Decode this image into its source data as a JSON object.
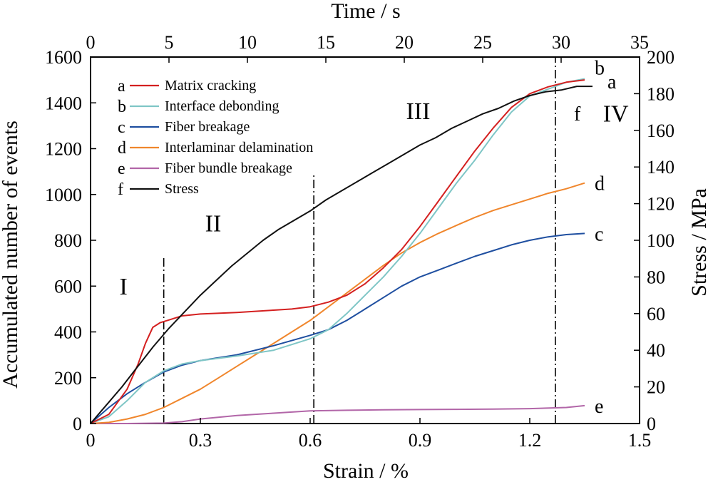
{
  "chart_data": {
    "type": "line",
    "xlabel": "Strain / %",
    "ylabel": "Accumulated number of events",
    "x2label": "Time / s",
    "y2label": "Stress / MPa",
    "xlim": [
      0,
      1.5
    ],
    "ylim": [
      0,
      1600
    ],
    "x2lim": [
      0,
      35
    ],
    "y2lim": [
      0,
      200
    ],
    "xticks": [
      0,
      0.3,
      0.6,
      0.9,
      1.2,
      1.5
    ],
    "xtick_labels": [
      "0",
      "0.3",
      "0.6",
      "0.9",
      "1.2",
      "1.5"
    ],
    "yticks": [
      0,
      200,
      400,
      600,
      800,
      1000,
      1200,
      1400,
      1600
    ],
    "ytick_labels": [
      "0",
      "200",
      "400",
      "600",
      "800",
      "1000",
      "1200",
      "1400",
      "1600"
    ],
    "x2ticks": [
      0,
      5,
      10,
      15,
      20,
      25,
      30,
      35
    ],
    "x2tick_labels": [
      "0",
      "5",
      "10",
      "15",
      "20",
      "25",
      "30",
      "35"
    ],
    "y2ticks": [
      0,
      20,
      40,
      60,
      80,
      100,
      120,
      140,
      160,
      180,
      200
    ],
    "y2tick_labels": [
      "0",
      "20",
      "40",
      "60",
      "80",
      "100",
      "120",
      "140",
      "160",
      "180",
      "200"
    ],
    "grid": false,
    "legend_position": "top-left",
    "series": [
      {
        "key": "a",
        "name": "Matrix cracking",
        "color": "#d42020",
        "axis": "left",
        "x": [
          0,
          0.05,
          0.1,
          0.13,
          0.15,
          0.17,
          0.19,
          0.21,
          0.25,
          0.3,
          0.4,
          0.5,
          0.55,
          0.6,
          0.65,
          0.7,
          0.75,
          0.8,
          0.85,
          0.9,
          0.95,
          1.0,
          1.05,
          1.1,
          1.15,
          1.2,
          1.25,
          1.3,
          1.35
        ],
        "y": [
          0,
          40,
          150,
          260,
          350,
          420,
          440,
          450,
          470,
          478,
          485,
          495,
          500,
          510,
          530,
          560,
          610,
          680,
          760,
          860,
          970,
          1080,
          1190,
          1290,
          1380,
          1440,
          1470,
          1490,
          1500
        ]
      },
      {
        "key": "b",
        "name": "Interface debonding",
        "color": "#7fc6c6",
        "axis": "left",
        "x": [
          0,
          0.05,
          0.1,
          0.15,
          0.2,
          0.25,
          0.3,
          0.4,
          0.5,
          0.55,
          0.6,
          0.65,
          0.7,
          0.75,
          0.8,
          0.85,
          0.9,
          0.95,
          1.0,
          1.05,
          1.1,
          1.15,
          1.2,
          1.25,
          1.3,
          1.35
        ],
        "y": [
          0,
          30,
          100,
          180,
          230,
          260,
          275,
          295,
          320,
          345,
          370,
          410,
          480,
          560,
          640,
          730,
          830,
          940,
          1050,
          1150,
          1260,
          1360,
          1430,
          1460,
          1490,
          1505
        ]
      },
      {
        "key": "c",
        "name": "Fiber breakage",
        "color": "#1f4fa0",
        "axis": "left",
        "x": [
          0,
          0.05,
          0.1,
          0.15,
          0.2,
          0.25,
          0.3,
          0.4,
          0.5,
          0.6,
          0.65,
          0.7,
          0.75,
          0.8,
          0.85,
          0.9,
          0.95,
          1.0,
          1.05,
          1.1,
          1.15,
          1.2,
          1.25,
          1.3,
          1.35
        ],
        "y": [
          0,
          70,
          130,
          180,
          225,
          255,
          275,
          300,
          340,
          385,
          410,
          450,
          500,
          550,
          600,
          640,
          670,
          700,
          730,
          755,
          780,
          800,
          815,
          825,
          830
        ]
      },
      {
        "key": "d",
        "name": "Interlaminar delamination",
        "color": "#f0862c",
        "axis": "left",
        "x": [
          0,
          0.05,
          0.1,
          0.15,
          0.2,
          0.25,
          0.3,
          0.35,
          0.4,
          0.45,
          0.5,
          0.55,
          0.6,
          0.65,
          0.7,
          0.75,
          0.8,
          0.85,
          0.9,
          0.95,
          1.0,
          1.05,
          1.1,
          1.15,
          1.2,
          1.25,
          1.3,
          1.35
        ],
        "y": [
          0,
          5,
          20,
          40,
          70,
          110,
          150,
          200,
          250,
          300,
          350,
          400,
          450,
          510,
          570,
          630,
          690,
          745,
          790,
          830,
          865,
          900,
          930,
          955,
          980,
          1005,
          1025,
          1050
        ]
      },
      {
        "key": "e",
        "name": "Fiber bundle breakage",
        "color": "#b266a8",
        "axis": "left",
        "x": [
          0,
          0.1,
          0.2,
          0.25,
          0.3,
          0.4,
          0.5,
          0.6,
          0.7,
          0.8,
          0.9,
          1.0,
          1.1,
          1.2,
          1.3,
          1.35
        ],
        "y": [
          0,
          0,
          2,
          8,
          20,
          35,
          45,
          55,
          58,
          60,
          61,
          62,
          63,
          65,
          70,
          78
        ]
      },
      {
        "key": "f",
        "name": "Stress",
        "color": "#111111",
        "axis": "right",
        "x": [
          0,
          1,
          2,
          3,
          4,
          5,
          6,
          7,
          8,
          9,
          10,
          11,
          12,
          13,
          14,
          15,
          16,
          17,
          18,
          19,
          20,
          21,
          22,
          23,
          24,
          25,
          26,
          27,
          28,
          29,
          30,
          31,
          32
        ],
        "y": [
          0,
          10,
          20,
          31,
          42,
          52,
          61,
          70,
          78,
          86,
          93,
          100,
          106,
          111,
          116,
          122,
          127,
          132,
          137,
          142,
          147,
          152,
          156,
          161,
          165,
          169,
          172,
          176,
          179,
          181,
          182,
          184,
          184
        ]
      }
    ],
    "end_labels": [
      {
        "text": "b",
        "series": "b"
      },
      {
        "text": "a",
        "series": "a"
      },
      {
        "text": "f",
        "series": "f"
      },
      {
        "text": "d",
        "series": "d"
      },
      {
        "text": "c",
        "series": "c"
      },
      {
        "text": "e",
        "series": "e"
      }
    ],
    "stage_dividers": [
      0.2,
      0.61,
      1.27
    ],
    "stages": [
      "I",
      "II",
      "III",
      "IV"
    ]
  }
}
